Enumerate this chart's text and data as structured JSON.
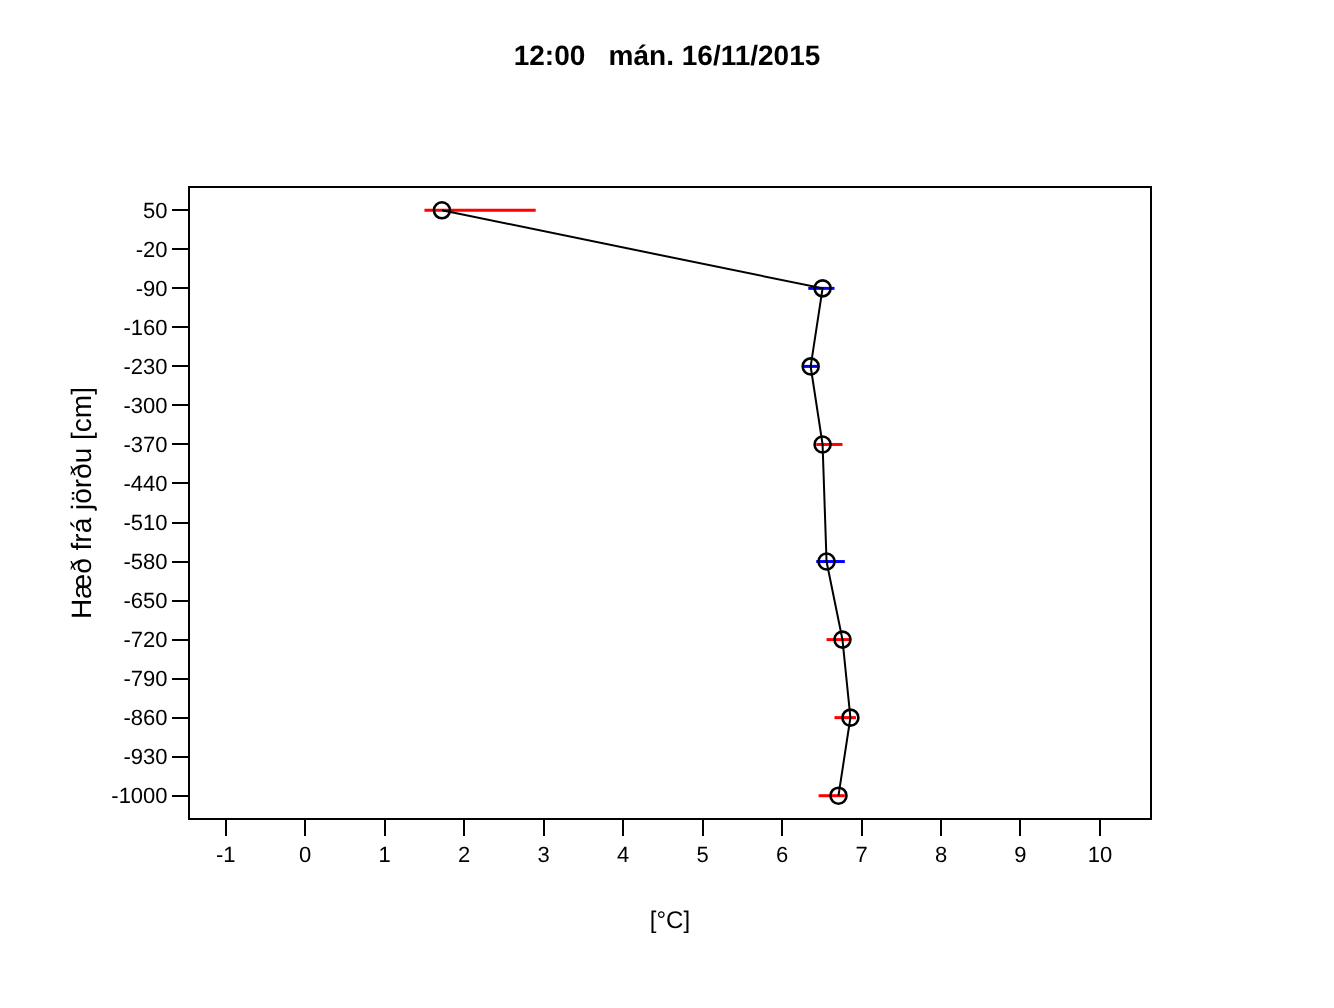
{
  "chart_data": {
    "type": "line",
    "title": "12:00   mán. 16/11/2015",
    "xlabel": "[°C]",
    "ylabel": "Hæð frá jörðu [cm]",
    "xlim": [
      -1.45,
      10.63
    ],
    "xticks": [
      -1,
      0,
      1,
      2,
      3,
      4,
      5,
      6,
      7,
      8,
      9,
      10
    ],
    "ylim": [
      -1040,
      90
    ],
    "yticks": [
      50,
      -20,
      -90,
      -160,
      -230,
      -300,
      -370,
      -440,
      -510,
      -580,
      -650,
      -720,
      -790,
      -860,
      -930,
      -1000
    ],
    "marker": "circle",
    "line_style": "solid",
    "series": [
      {
        "color": "#000000",
        "x": [
          1.72,
          6.51,
          6.36,
          6.51,
          6.56,
          6.76,
          6.86,
          6.71
        ],
        "values": [
          50,
          -90,
          -230,
          -370,
          -580,
          -720,
          -860,
          -1000
        ],
        "colors": [
          "#ff0000",
          "#0000ff",
          "#0000ff",
          "#ff0000",
          "#0000ff",
          "#ff0000",
          "#ff0000",
          "#ff0000"
        ],
        "xerrors": [
          [
            1.5,
            2.9
          ],
          [
            6.33,
            6.66
          ],
          [
            6.26,
            6.46
          ],
          [
            6.43,
            6.76
          ],
          [
            6.43,
            6.79
          ],
          [
            6.56,
            6.86
          ],
          [
            6.66,
            6.93
          ],
          [
            6.46,
            6.79
          ]
        ]
      }
    ]
  }
}
